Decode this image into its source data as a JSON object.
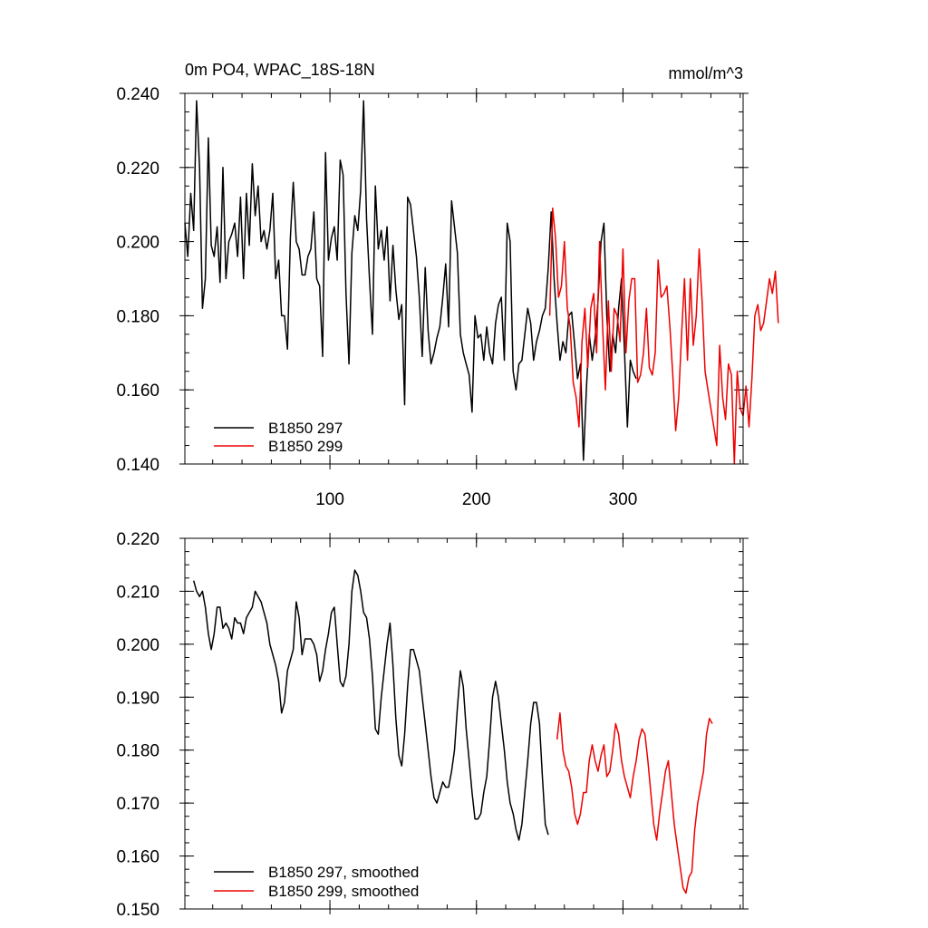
{
  "chart_data": [
    {
      "type": "line",
      "title": "0m PO4, WPAC_18S-18N",
      "units": "mmol/m^3",
      "xlim": [
        1,
        382
      ],
      "ylim": [
        0.14,
        0.24
      ],
      "xticks": [
        100,
        200,
        300
      ],
      "xtick_labels": [
        "100",
        "200",
        "300"
      ],
      "yticks": [
        0.14,
        0.16,
        0.18,
        0.2,
        0.22,
        0.24
      ],
      "ytick_labels": [
        "0.140",
        "0.160",
        "0.180",
        "0.200",
        "0.220",
        "0.240"
      ],
      "grid": false,
      "legend_position": "bottom-left",
      "series": [
        {
          "name": "B1850 297",
          "color": "#000000",
          "x_start": 1,
          "x_step": 2,
          "values": [
            0.205,
            0.196,
            0.213,
            0.203,
            0.238,
            0.22,
            0.182,
            0.19,
            0.228,
            0.199,
            0.196,
            0.204,
            0.189,
            0.22,
            0.19,
            0.2,
            0.202,
            0.205,
            0.196,
            0.212,
            0.19,
            0.213,
            0.199,
            0.221,
            0.207,
            0.215,
            0.2,
            0.203,
            0.198,
            0.203,
            0.213,
            0.19,
            0.195,
            0.18,
            0.18,
            0.171,
            0.201,
            0.216,
            0.2,
            0.198,
            0.191,
            0.191,
            0.196,
            0.198,
            0.208,
            0.19,
            0.188,
            0.169,
            0.224,
            0.195,
            0.201,
            0.204,
            0.195,
            0.222,
            0.218,
            0.186,
            0.167,
            0.197,
            0.207,
            0.203,
            0.214,
            0.238,
            0.206,
            0.19,
            0.175,
            0.215,
            0.198,
            0.203,
            0.195,
            0.204,
            0.184,
            0.199,
            0.187,
            0.179,
            0.183,
            0.156,
            0.212,
            0.21,
            0.203,
            0.196,
            0.185,
            0.169,
            0.193,
            0.176,
            0.167,
            0.17,
            0.174,
            0.177,
            0.185,
            0.194,
            0.177,
            0.211,
            0.204,
            0.197,
            0.175,
            0.17,
            0.167,
            0.164,
            0.154,
            0.18,
            0.174,
            0.175,
            0.168,
            0.177,
            0.17,
            0.167,
            0.178,
            0.183,
            0.185,
            0.168,
            0.205,
            0.2,
            0.165,
            0.16,
            0.167,
            0.168,
            0.175,
            0.182,
            0.178,
            0.168,
            0.173,
            0.176,
            0.18,
            0.182,
            0.193,
            0.208,
            0.19,
            0.178,
            0.168,
            0.173,
            0.17,
            0.18,
            0.181,
            0.172,
            0.163,
            0.167,
            0.141,
            0.16,
            0.175,
            0.168,
            0.174,
            0.184,
            0.2,
            0.205,
            0.18,
            0.165,
            0.175,
            0.17,
            0.182,
            0.19,
            0.171,
            0.15,
            0.168,
            0.165,
            0.163
          ]
        },
        {
          "name": "B1850 299",
          "color": "#ee0000",
          "x_start": 250,
          "x_step": 2,
          "values": [
            0.18,
            0.209,
            0.201,
            0.185,
            0.188,
            0.2,
            0.182,
            0.177,
            0.162,
            0.158,
            0.15,
            0.173,
            0.182,
            0.166,
            0.182,
            0.186,
            0.17,
            0.2,
            0.178,
            0.16,
            0.184,
            0.165,
            0.182,
            0.18,
            0.173,
            0.198,
            0.17,
            0.184,
            0.19,
            0.19,
            0.162,
            0.164,
            0.17,
            0.182,
            0.166,
            0.164,
            0.17,
            0.195,
            0.185,
            0.186,
            0.188,
            0.177,
            0.164,
            0.149,
            0.158,
            0.175,
            0.19,
            0.168,
            0.19,
            0.172,
            0.18,
            0.198,
            0.184,
            0.165,
            0.16,
            0.155,
            0.15,
            0.145,
            0.172,
            0.158,
            0.152,
            0.167,
            0.164,
            0.14,
            0.165,
            0.155,
            0.153,
            0.161,
            0.15,
            0.163,
            0.18,
            0.183,
            0.176,
            0.178,
            0.184,
            0.19,
            0.186,
            0.192,
            0.178
          ]
        }
      ]
    },
    {
      "type": "line",
      "title": "",
      "xlim": [
        1,
        382
      ],
      "ylim": [
        0.15,
        0.22
      ],
      "xticks": [
        100,
        200,
        300
      ],
      "yticks": [
        0.15,
        0.16,
        0.17,
        0.18,
        0.19,
        0.2,
        0.21,
        0.22
      ],
      "ytick_labels": [
        "0.150",
        "0.160",
        "0.170",
        "0.180",
        "0.190",
        "0.200",
        "0.210",
        "0.220"
      ],
      "grid": false,
      "legend_position": "bottom-left",
      "series": [
        {
          "name": "B1850 297, smoothed",
          "color": "#000000",
          "x_start": 7,
          "x_step": 2,
          "values": [
            0.212,
            0.21,
            0.209,
            0.21,
            0.207,
            0.202,
            0.199,
            0.202,
            0.207,
            0.207,
            0.203,
            0.204,
            0.203,
            0.201,
            0.205,
            0.204,
            0.204,
            0.202,
            0.205,
            0.206,
            0.207,
            0.21,
            0.209,
            0.208,
            0.206,
            0.204,
            0.2,
            0.198,
            0.196,
            0.193,
            0.187,
            0.189,
            0.195,
            0.197,
            0.199,
            0.208,
            0.205,
            0.198,
            0.201,
            0.201,
            0.201,
            0.2,
            0.198,
            0.193,
            0.195,
            0.199,
            0.202,
            0.206,
            0.207,
            0.2,
            0.193,
            0.192,
            0.194,
            0.2,
            0.21,
            0.214,
            0.213,
            0.21,
            0.206,
            0.205,
            0.201,
            0.194,
            0.184,
            0.183,
            0.19,
            0.195,
            0.2,
            0.204,
            0.196,
            0.186,
            0.179,
            0.177,
            0.183,
            0.192,
            0.199,
            0.199,
            0.197,
            0.195,
            0.19,
            0.185,
            0.18,
            0.175,
            0.171,
            0.17,
            0.172,
            0.174,
            0.173,
            0.173,
            0.176,
            0.18,
            0.188,
            0.195,
            0.192,
            0.184,
            0.178,
            0.172,
            0.167,
            0.167,
            0.168,
            0.172,
            0.175,
            0.182,
            0.19,
            0.193,
            0.19,
            0.185,
            0.18,
            0.174,
            0.17,
            0.168,
            0.165,
            0.163,
            0.166,
            0.172,
            0.178,
            0.185,
            0.189,
            0.189,
            0.185,
            0.175,
            0.166,
            0.164
          ]
        },
        {
          "name": "B1850 299, smoothed",
          "color": "#ee0000",
          "x_start": 255,
          "x_step": 2,
          "values": [
            0.182,
            0.187,
            0.18,
            0.177,
            0.176,
            0.173,
            0.168,
            0.166,
            0.168,
            0.172,
            0.172,
            0.178,
            0.181,
            0.178,
            0.176,
            0.179,
            0.181,
            0.175,
            0.176,
            0.18,
            0.185,
            0.183,
            0.178,
            0.175,
            0.173,
            0.171,
            0.175,
            0.178,
            0.182,
            0.184,
            0.183,
            0.178,
            0.172,
            0.166,
            0.163,
            0.168,
            0.172,
            0.176,
            0.178,
            0.172,
            0.166,
            0.162,
            0.158,
            0.154,
            0.153,
            0.156,
            0.157,
            0.165,
            0.17,
            0.173,
            0.176,
            0.183,
            0.186,
            0.185
          ]
        }
      ]
    }
  ]
}
